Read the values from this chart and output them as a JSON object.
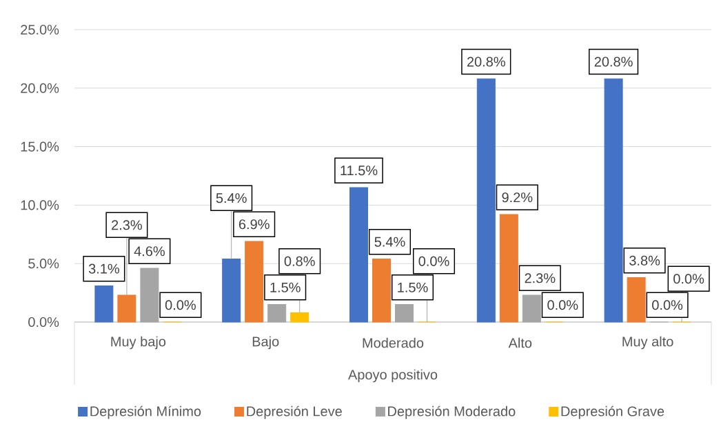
{
  "chart_data": {
    "type": "bar",
    "xlabel": "Apoyo positivo",
    "categories": [
      "Muy bajo",
      "Bajo",
      "Moderado",
      "Alto",
      "Muy alto"
    ],
    "series": [
      {
        "name": "Depresión Mínimo",
        "color": "#4472c4",
        "values": [
          3.1,
          5.4,
          11.5,
          20.8,
          20.8
        ],
        "value_labels": [
          "3.1%",
          "5.4%",
          "11.5%",
          "20.8%",
          "20.8%"
        ]
      },
      {
        "name": "Depresión Leve",
        "color": "#ed7d31",
        "values": [
          2.3,
          6.9,
          5.4,
          9.2,
          3.8
        ],
        "value_labels": [
          "2.3%",
          "6.9%",
          "5.4%",
          "9.2%",
          "3.8%"
        ]
      },
      {
        "name": "Depresión Moderado",
        "color": "#a5a5a5",
        "values": [
          4.6,
          1.5,
          1.5,
          2.3,
          0.0
        ],
        "value_labels": [
          "4.6%",
          "1.5%",
          "1.5%",
          "2.3%",
          "0.0%"
        ]
      },
      {
        "name": "Depresión Grave",
        "color": "#ffc000",
        "values": [
          0.0,
          0.8,
          0.0,
          0.0,
          0.0
        ],
        "value_labels": [
          "0.0%",
          "0.8%",
          "0.0%",
          "0.0%",
          "0.0%"
        ]
      }
    ],
    "ylim": [
      0,
      25
    ],
    "yticks": [
      {
        "value": 0,
        "label": "0.0%"
      },
      {
        "value": 5,
        "label": "5.0%"
      },
      {
        "value": 10,
        "label": "10.0%"
      },
      {
        "value": 15,
        "label": "15.0%"
      },
      {
        "value": 20,
        "label": "20.0%"
      },
      {
        "value": 25,
        "label": "25.0%"
      }
    ],
    "grid": "y",
    "legend": "bottom"
  }
}
